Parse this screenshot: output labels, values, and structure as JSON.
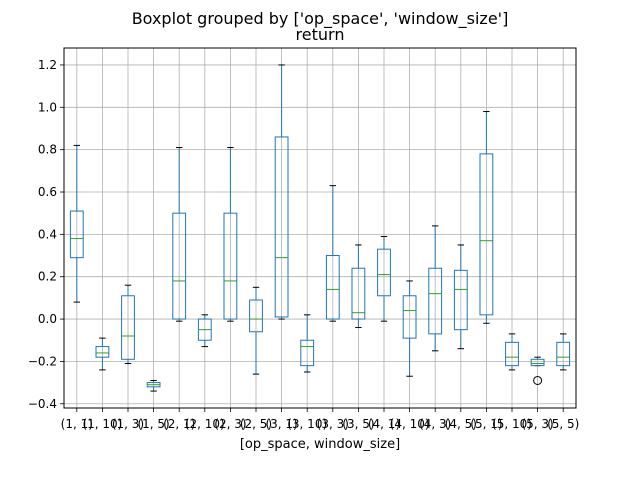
{
  "chart_data": {
    "type": "boxplot",
    "suptitle": "Boxplot grouped by ['op_space', 'window_size']",
    "title": "return",
    "xlabel": "[op_space, window_size]",
    "ylabel": "",
    "ylim": [
      -0.42,
      1.28
    ],
    "yticks": [
      -0.4,
      -0.2,
      0.0,
      0.2,
      0.4,
      0.6,
      0.8,
      1.0,
      1.2
    ],
    "ytick_labels": [
      "−0.4",
      "−0.2",
      "0.0",
      "0.2",
      "0.4",
      "0.6",
      "0.8",
      "1.0",
      "1.2"
    ],
    "grid": true,
    "colors": {
      "box": "#1f77b4",
      "median": "#2ca02c",
      "whisker": "#1f77b4",
      "cap": "#000000",
      "grid": "#b0b0b0"
    },
    "categories": [
      "(1, 1)",
      "(1, 10)",
      "(1, 3)",
      "(1, 5)",
      "(2, 1)",
      "(2, 10)",
      "(2, 3)",
      "(2, 5)",
      "(3, 1)",
      "(3, 10)",
      "(3, 3)",
      "(3, 5)",
      "(4, 1)",
      "(4, 10)",
      "(4, 3)",
      "(4, 5)",
      "(5, 1)",
      "(5, 10)",
      "(5, 3)",
      "(5, 5)"
    ],
    "boxes": [
      {
        "whislo": 0.08,
        "q1": 0.29,
        "med": 0.38,
        "q3": 0.51,
        "whishi": 0.82,
        "fliers": []
      },
      {
        "whislo": -0.24,
        "q1": -0.18,
        "med": -0.16,
        "q3": -0.13,
        "whishi": -0.09,
        "fliers": []
      },
      {
        "whislo": -0.21,
        "q1": -0.19,
        "med": -0.08,
        "q3": 0.11,
        "whishi": 0.16,
        "fliers": []
      },
      {
        "whislo": -0.34,
        "q1": -0.32,
        "med": -0.31,
        "q3": -0.3,
        "whishi": -0.29,
        "fliers": []
      },
      {
        "whislo": -0.01,
        "q1": 0.0,
        "med": 0.18,
        "q3": 0.5,
        "whishi": 0.81,
        "fliers": []
      },
      {
        "whislo": -0.13,
        "q1": -0.1,
        "med": -0.05,
        "q3": 0.0,
        "whishi": 0.02,
        "fliers": []
      },
      {
        "whislo": -0.01,
        "q1": 0.0,
        "med": 0.18,
        "q3": 0.5,
        "whishi": 0.81,
        "fliers": []
      },
      {
        "whislo": -0.26,
        "q1": -0.06,
        "med": 0.0,
        "q3": 0.09,
        "whishi": 0.15,
        "fliers": []
      },
      {
        "whislo": 0.0,
        "q1": 0.01,
        "med": 0.29,
        "q3": 0.86,
        "whishi": 1.2,
        "fliers": []
      },
      {
        "whislo": -0.25,
        "q1": -0.22,
        "med": -0.13,
        "q3": -0.1,
        "whishi": 0.02,
        "fliers": []
      },
      {
        "whislo": -0.01,
        "q1": 0.0,
        "med": 0.14,
        "q3": 0.3,
        "whishi": 0.63,
        "fliers": []
      },
      {
        "whislo": -0.04,
        "q1": 0.0,
        "med": 0.03,
        "q3": 0.24,
        "whishi": 0.35,
        "fliers": []
      },
      {
        "whislo": -0.01,
        "q1": 0.11,
        "med": 0.21,
        "q3": 0.33,
        "whishi": 0.39,
        "fliers": []
      },
      {
        "whislo": -0.27,
        "q1": -0.09,
        "med": 0.04,
        "q3": 0.11,
        "whishi": 0.18,
        "fliers": []
      },
      {
        "whislo": -0.15,
        "q1": -0.07,
        "med": 0.12,
        "q3": 0.24,
        "whishi": 0.44,
        "fliers": []
      },
      {
        "whislo": -0.14,
        "q1": -0.05,
        "med": 0.14,
        "q3": 0.23,
        "whishi": 0.35,
        "fliers": []
      },
      {
        "whislo": -0.02,
        "q1": 0.02,
        "med": 0.37,
        "q3": 0.78,
        "whishi": 0.98,
        "fliers": []
      },
      {
        "whislo": -0.24,
        "q1": -0.22,
        "med": -0.18,
        "q3": -0.11,
        "whishi": -0.07,
        "fliers": []
      },
      {
        "whislo": -0.22,
        "q1": -0.22,
        "med": -0.21,
        "q3": -0.19,
        "whishi": -0.18,
        "fliers": [
          -0.29
        ]
      },
      {
        "whislo": -0.24,
        "q1": -0.22,
        "med": -0.18,
        "q3": -0.11,
        "whishi": -0.07,
        "fliers": []
      }
    ]
  }
}
